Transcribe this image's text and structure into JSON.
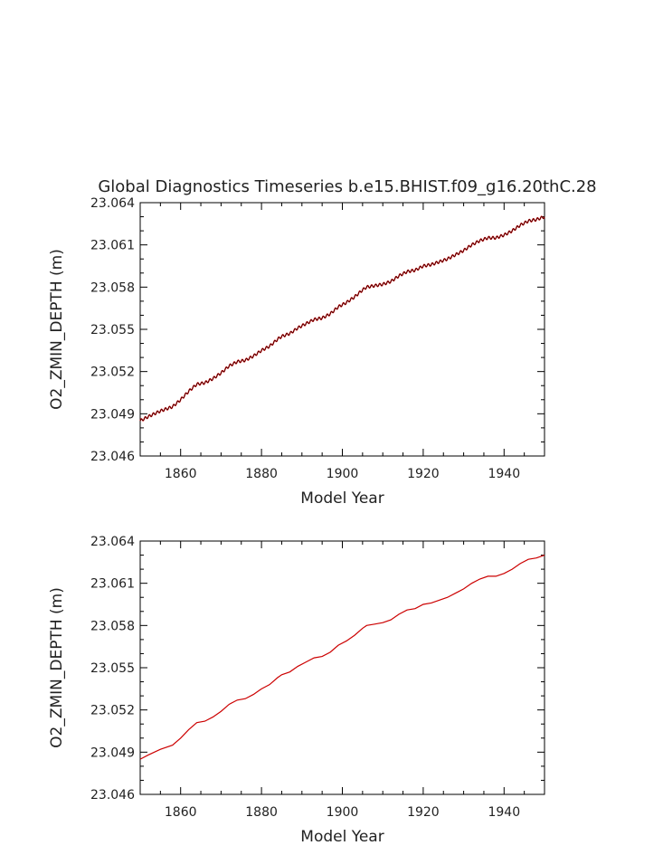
{
  "chart_data": [
    {
      "type": "line",
      "title": "Global Diagnostics Timeseries b.e15.BHIST.f09_g16.20thC.28",
      "xlabel": "Model Year",
      "ylabel": "O2_ZMIN_DEPTH (m)",
      "xlim": [
        1850,
        1950
      ],
      "ylim": [
        23.046,
        23.064
      ],
      "x_ticks": [
        1860,
        1880,
        1900,
        1920,
        1940
      ],
      "x_tick_labels": [
        "1860",
        "1880",
        "1900",
        "1920",
        "1940"
      ],
      "y_ticks": [
        23.046,
        23.049,
        23.052,
        23.055,
        23.058,
        23.061,
        23.064
      ],
      "y_tick_labels": [
        "23.046",
        "23.049",
        "23.052",
        "23.055",
        "23.058",
        "23.061",
        "23.064"
      ],
      "seasonal_cycle": true,
      "series": [
        {
          "color_main": "#cc0000",
          "color_overlay": "#000000",
          "x": [
            1850,
            1852,
            1855,
            1858,
            1860,
            1862,
            1864,
            1866,
            1868,
            1870,
            1872,
            1874,
            1876,
            1878,
            1880,
            1882,
            1884,
            1885,
            1887,
            1889,
            1891,
            1893,
            1895,
            1897,
            1899,
            1901,
            1903,
            1905,
            1906,
            1908,
            1910,
            1912,
            1914,
            1916,
            1918,
            1920,
            1922,
            1924,
            1926,
            1928,
            1930,
            1932,
            1934,
            1936,
            1938,
            1940,
            1942,
            1944,
            1946,
            1948,
            1950
          ],
          "y": [
            23.0485,
            23.0488,
            23.0492,
            23.0495,
            23.05,
            23.0506,
            23.0511,
            23.0512,
            23.0515,
            23.0519,
            23.0524,
            23.0527,
            23.0528,
            23.0531,
            23.0535,
            23.0538,
            23.0543,
            23.0545,
            23.0547,
            23.0551,
            23.0554,
            23.0557,
            23.0558,
            23.0561,
            23.0566,
            23.0569,
            23.0573,
            23.0578,
            23.058,
            23.0581,
            23.0582,
            23.0584,
            23.0588,
            23.0591,
            23.0592,
            23.0595,
            23.0596,
            23.0598,
            23.06,
            23.0603,
            23.0606,
            23.061,
            23.0613,
            23.0615,
            23.0615,
            23.0617,
            23.062,
            23.0624,
            23.0627,
            23.0628,
            23.063
          ]
        }
      ]
    },
    {
      "type": "line",
      "title": "",
      "xlabel": "Model Year",
      "ylabel": "O2_ZMIN_DEPTH (m)",
      "xlim": [
        1850,
        1950
      ],
      "ylim": [
        23.046,
        23.064
      ],
      "x_ticks": [
        1860,
        1880,
        1900,
        1920,
        1940
      ],
      "x_tick_labels": [
        "1860",
        "1880",
        "1900",
        "1920",
        "1940"
      ],
      "y_ticks": [
        23.046,
        23.049,
        23.052,
        23.055,
        23.058,
        23.061,
        23.064
      ],
      "y_tick_labels": [
        "23.046",
        "23.049",
        "23.052",
        "23.055",
        "23.058",
        "23.061",
        "23.064"
      ],
      "seasonal_cycle": false,
      "series": [
        {
          "color_main": "#cc0000",
          "x": [
            1850,
            1852,
            1855,
            1858,
            1860,
            1862,
            1864,
            1866,
            1868,
            1870,
            1872,
            1874,
            1876,
            1878,
            1880,
            1882,
            1884,
            1885,
            1887,
            1889,
            1891,
            1893,
            1895,
            1897,
            1899,
            1901,
            1903,
            1905,
            1906,
            1908,
            1910,
            1912,
            1914,
            1916,
            1918,
            1920,
            1922,
            1924,
            1926,
            1928,
            1930,
            1932,
            1934,
            1936,
            1938,
            1940,
            1942,
            1944,
            1946,
            1948,
            1950
          ],
          "y": [
            23.0485,
            23.0488,
            23.0492,
            23.0495,
            23.05,
            23.0506,
            23.0511,
            23.0512,
            23.0515,
            23.0519,
            23.0524,
            23.0527,
            23.0528,
            23.0531,
            23.0535,
            23.0538,
            23.0543,
            23.0545,
            23.0547,
            23.0551,
            23.0554,
            23.0557,
            23.0558,
            23.0561,
            23.0566,
            23.0569,
            23.0573,
            23.0578,
            23.058,
            23.0581,
            23.0582,
            23.0584,
            23.0588,
            23.0591,
            23.0592,
            23.0595,
            23.0596,
            23.0598,
            23.06,
            23.0603,
            23.0606,
            23.061,
            23.0613,
            23.0615,
            23.0615,
            23.0617,
            23.062,
            23.0624,
            23.0627,
            23.0628,
            23.063
          ]
        }
      ]
    }
  ]
}
